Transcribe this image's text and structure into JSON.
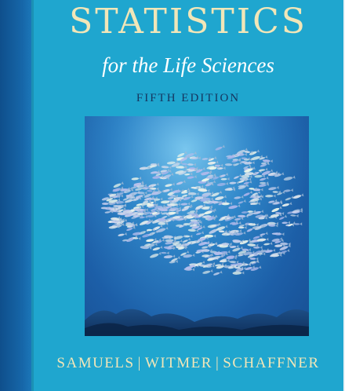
{
  "cover": {
    "title": "STATISTICS",
    "subtitle": "for the Life Sciences",
    "edition": "FIFTH EDITION",
    "authors": [
      "SAMUELS",
      "WITMER",
      "SCHAFFNER"
    ],
    "separator": "|"
  },
  "photo": {
    "subject": "school-of-fish"
  },
  "colors": {
    "background": "#1fa6cf",
    "spine": "#1666a8",
    "title": "#f1e6b8",
    "subtitle": "#ffffff",
    "edition": "#16355f",
    "authors": "#f1e6b8"
  }
}
